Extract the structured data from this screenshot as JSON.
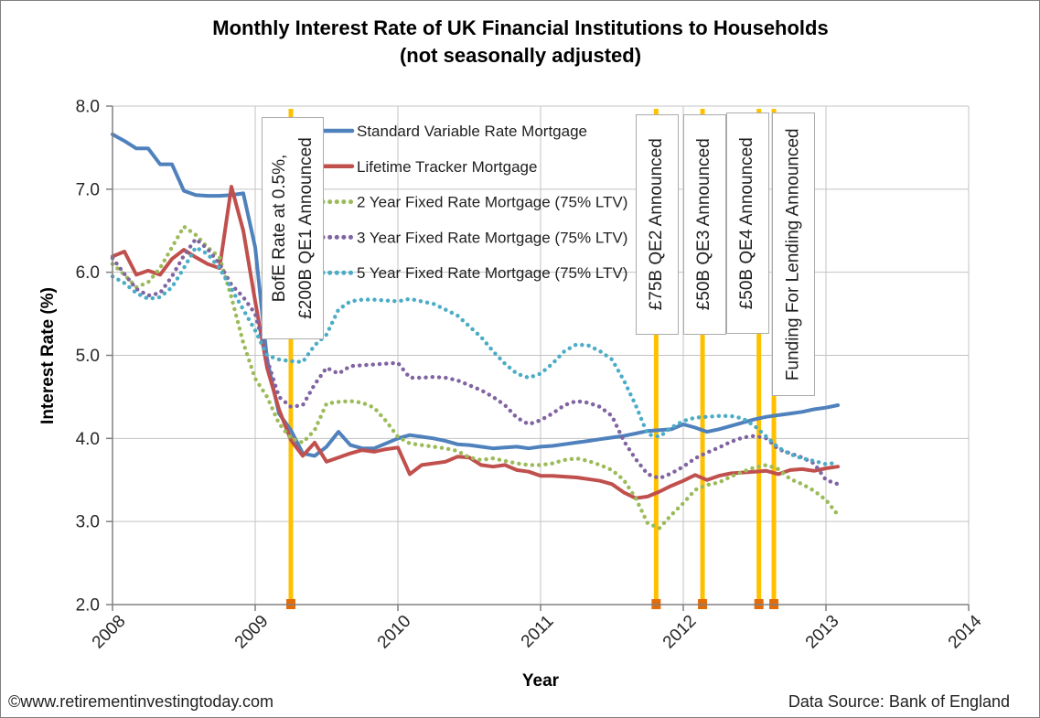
{
  "title": {
    "line1": "Monthly Interest Rate of UK Financial Institutions to Households",
    "line2": "(not seasonally adjusted)"
  },
  "footer": {
    "copyright": "©www.retirementinvestingtoday.com",
    "source": "Data Source: Bank of England"
  },
  "chart_data": {
    "type": "line",
    "title": "Monthly Interest Rate of UK Financial Institutions to Households (not seasonally adjusted)",
    "xlabel": "Year",
    "ylabel": "Interest Rate  (%)",
    "xlim": [
      2008,
      2014
    ],
    "ylim": [
      2.0,
      8.0
    ],
    "grid": true,
    "legend_position": "top-inside",
    "frequency": "monthly",
    "x_start_label": "2008-01",
    "x_end_label": "2013-02",
    "xtick_labels": [
      "2008",
      "2009",
      "2010",
      "2011",
      "2012",
      "2013",
      "2014"
    ],
    "xtick_values": [
      2008,
      2009,
      2010,
      2011,
      2012,
      2013,
      2014
    ],
    "ytick_labels": [
      "2.0",
      "3.0",
      "4.0",
      "5.0",
      "6.0",
      "7.0",
      "8.0"
    ],
    "ytick_values": [
      2,
      3,
      4,
      5,
      6,
      7,
      8
    ],
    "series": [
      {
        "name": "Standard Variable Rate Mortgage",
        "color": "#4F81BD",
        "style": "solid",
        "values": [
          7.66,
          7.58,
          7.49,
          7.49,
          7.3,
          7.3,
          6.98,
          6.93,
          6.92,
          6.92,
          6.93,
          6.95,
          6.3,
          4.95,
          4.3,
          4.1,
          3.82,
          3.79,
          3.9,
          4.08,
          3.92,
          3.88,
          3.88,
          3.94,
          4.0,
          4.04,
          4.02,
          4.0,
          3.97,
          3.93,
          3.92,
          3.9,
          3.88,
          3.89,
          3.9,
          3.88,
          3.9,
          3.91,
          3.93,
          3.95,
          3.97,
          3.99,
          4.01,
          4.03,
          4.06,
          4.09,
          4.1,
          4.11,
          4.17,
          4.13,
          4.08,
          4.11,
          4.15,
          4.19,
          4.23,
          4.26,
          4.28,
          4.3,
          4.32,
          4.35,
          4.37,
          4.4
        ]
      },
      {
        "name": "Lifetime Tracker Mortgage",
        "color": "#C0504D",
        "style": "solid",
        "values": [
          6.19,
          6.25,
          5.97,
          6.02,
          5.97,
          6.16,
          6.27,
          6.18,
          6.1,
          6.05,
          7.03,
          6.5,
          5.65,
          4.85,
          4.35,
          3.98,
          3.79,
          3.95,
          3.72,
          3.77,
          3.82,
          3.86,
          3.84,
          3.87,
          3.89,
          3.57,
          3.68,
          3.7,
          3.72,
          3.78,
          3.77,
          3.68,
          3.66,
          3.68,
          3.62,
          3.6,
          3.55,
          3.55,
          3.54,
          3.53,
          3.51,
          3.49,
          3.45,
          3.35,
          3.28,
          3.3,
          3.36,
          3.43,
          3.49,
          3.56,
          3.5,
          3.55,
          3.58,
          3.59,
          3.6,
          3.61,
          3.57,
          3.62,
          3.63,
          3.61,
          3.64,
          3.66
        ]
      },
      {
        "name": "2 Year Fixed Rate Mortgage (75% LTV)",
        "color": "#9BBB59",
        "style": "dotted",
        "values": [
          6.1,
          5.97,
          5.82,
          5.88,
          6.05,
          6.3,
          6.55,
          6.45,
          6.3,
          6.18,
          5.7,
          5.15,
          4.72,
          4.5,
          4.18,
          4.0,
          3.95,
          4.1,
          4.42,
          4.44,
          4.45,
          4.43,
          4.37,
          4.21,
          4.02,
          3.94,
          3.92,
          3.9,
          3.88,
          3.85,
          3.77,
          3.74,
          3.76,
          3.73,
          3.7,
          3.68,
          3.68,
          3.7,
          3.74,
          3.76,
          3.73,
          3.68,
          3.62,
          3.5,
          3.28,
          2.98,
          2.92,
          3.08,
          3.22,
          3.38,
          3.44,
          3.47,
          3.54,
          3.6,
          3.65,
          3.68,
          3.63,
          3.51,
          3.45,
          3.37,
          3.26,
          3.08
        ]
      },
      {
        "name": "3 Year Fixed Rate Mortgage (75% LTV)",
        "color": "#8064A2",
        "style": "dotted",
        "values": [
          6.17,
          5.98,
          5.8,
          5.72,
          5.75,
          5.95,
          6.2,
          6.4,
          6.28,
          6.1,
          5.85,
          5.7,
          5.5,
          4.95,
          4.5,
          4.38,
          4.4,
          4.65,
          4.85,
          4.78,
          4.87,
          4.88,
          4.89,
          4.9,
          4.91,
          4.73,
          4.73,
          4.74,
          4.73,
          4.7,
          4.64,
          4.58,
          4.5,
          4.4,
          4.25,
          4.17,
          4.22,
          4.3,
          4.4,
          4.45,
          4.43,
          4.38,
          4.27,
          3.97,
          3.75,
          3.57,
          3.52,
          3.58,
          3.66,
          3.76,
          3.83,
          3.89,
          3.96,
          4.01,
          4.03,
          4.0,
          3.87,
          3.82,
          3.77,
          3.7,
          3.5,
          3.45
        ]
      },
      {
        "name": "5 Year Fixed Rate Mortgage (75% LTV)",
        "color": "#4BACC6",
        "style": "dotted",
        "values": [
          5.95,
          5.87,
          5.75,
          5.68,
          5.7,
          5.82,
          6.05,
          6.3,
          6.22,
          6.05,
          5.8,
          5.55,
          5.3,
          5.0,
          4.95,
          4.93,
          4.92,
          5.12,
          5.25,
          5.55,
          5.65,
          5.67,
          5.67,
          5.66,
          5.65,
          5.68,
          5.65,
          5.62,
          5.55,
          5.48,
          5.35,
          5.22,
          5.05,
          4.9,
          4.78,
          4.73,
          4.78,
          4.9,
          5.05,
          5.13,
          5.12,
          5.05,
          4.95,
          4.7,
          4.4,
          4.05,
          4.02,
          4.13,
          4.21,
          4.25,
          4.26,
          4.27,
          4.27,
          4.24,
          4.15,
          4.02,
          3.89,
          3.81,
          3.76,
          3.73,
          3.69,
          3.71
        ]
      }
    ],
    "annotations": [
      {
        "id": "qe1",
        "x": 2009.25,
        "label_lines": [
          "BofE Rate at 0.5%,",
          "£200B QE1 Announced"
        ]
      },
      {
        "id": "qe2",
        "x": 2011.81,
        "label_lines": [
          "£75B QE2 Announced"
        ]
      },
      {
        "id": "qe3",
        "x": 2012.135,
        "label_lines": [
          "£50B QE3 Announced"
        ]
      },
      {
        "id": "qe4",
        "x": 2012.53,
        "label_lines": [
          "£50B QE4 Announced"
        ]
      },
      {
        "id": "ffl",
        "x": 2012.635,
        "label_lines": [
          "Funding For Lending Announced"
        ]
      }
    ],
    "annotation_line_color": "#FFC000",
    "annotation_marker_color": "#E26B0A"
  }
}
